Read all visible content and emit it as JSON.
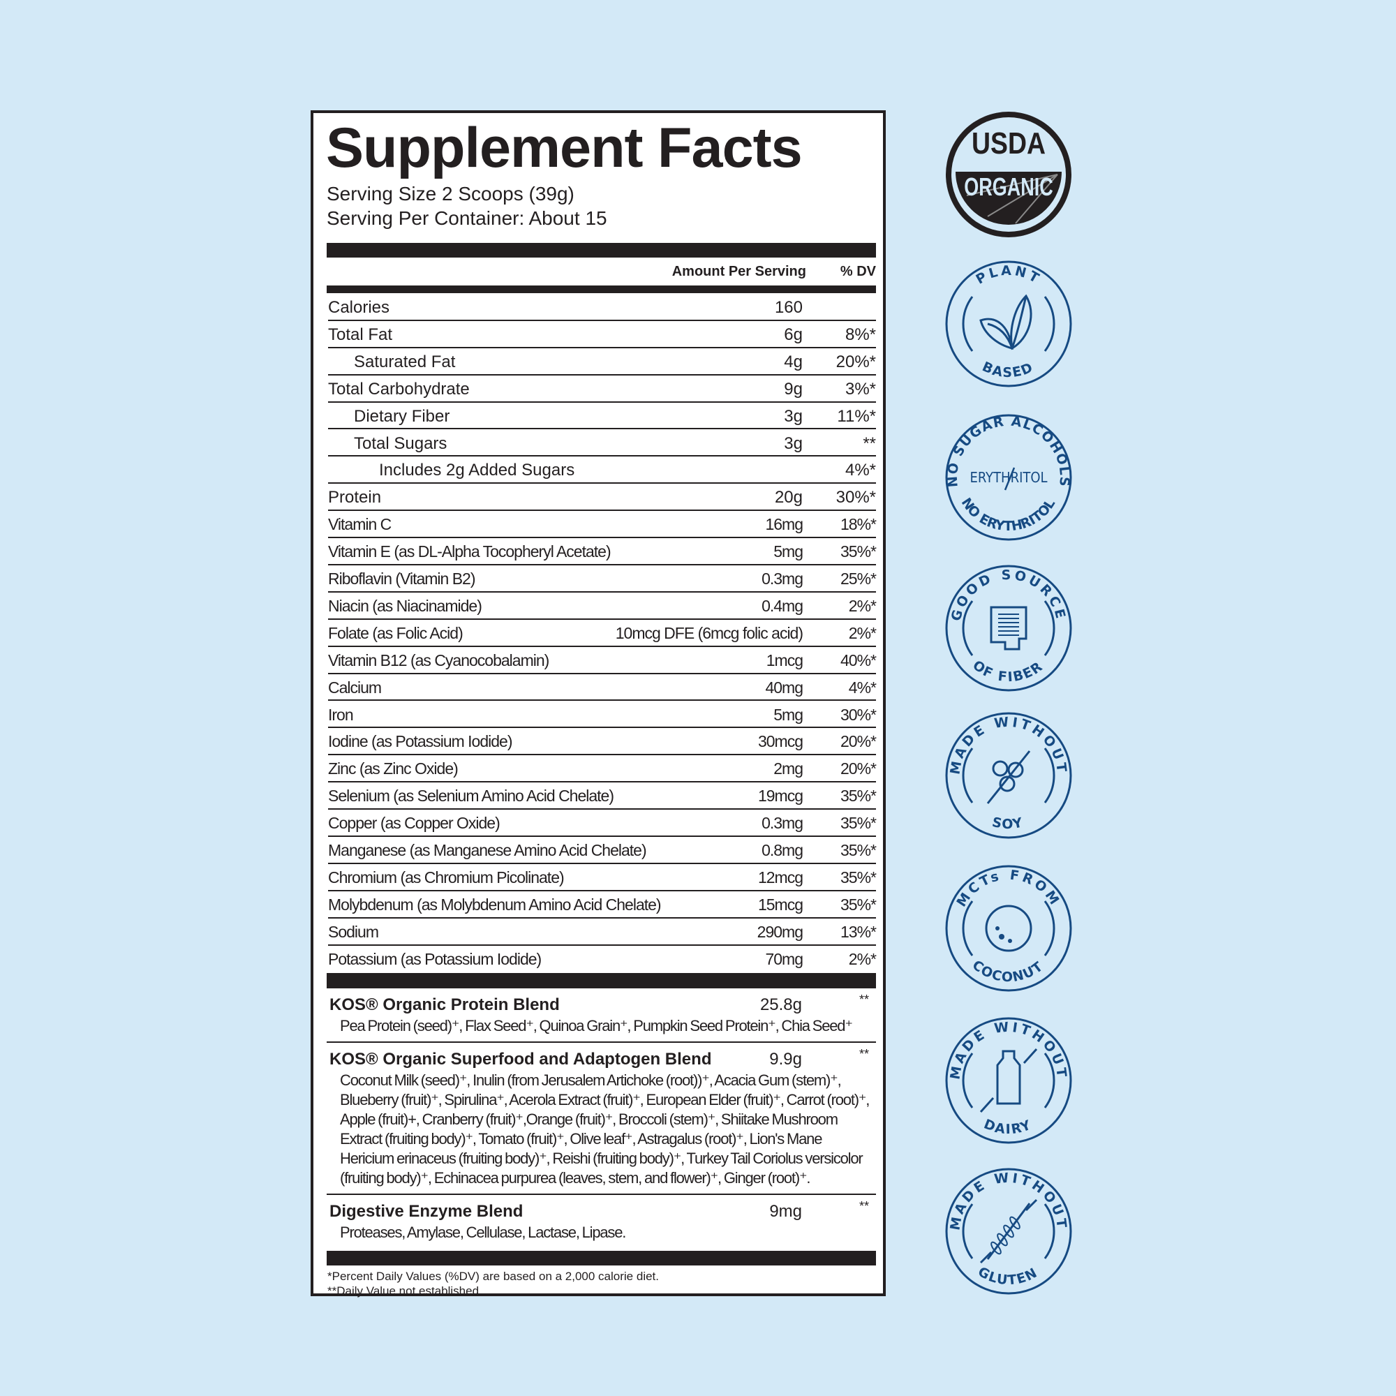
{
  "title": "Supplement Facts",
  "serving_size": "Serving Size 2 Scoops (39g)",
  "servings_per_container": "Serving Per Container: About 15",
  "header": {
    "amount": "Amount Per Serving",
    "dv": "% DV"
  },
  "rows": [
    {
      "label": "Calories",
      "amount": "160",
      "dv": "",
      "level": 0
    },
    {
      "label": "Total Fat",
      "amount": "6g",
      "dv": "8%*",
      "level": 0
    },
    {
      "label": "Saturated Fat",
      "amount": "4g",
      "dv": "20%*",
      "level": 1
    },
    {
      "label": "Total Carbohydrate",
      "amount": "9g",
      "dv": "3%*",
      "level": 0
    },
    {
      "label": "Dietary Fiber",
      "amount": "3g",
      "dv": "11%*",
      "level": 1
    },
    {
      "label": "Total Sugars",
      "amount": "3g",
      "dv": "**",
      "level": 1
    },
    {
      "label": "Includes 2g Added Sugars",
      "amount": "",
      "dv": "4%*",
      "level": 2
    },
    {
      "label": "Protein",
      "amount": "20g",
      "dv": "30%*",
      "level": 0
    },
    {
      "label": "Vitamin C",
      "amount": "16mg",
      "dv": "18%*",
      "level": 0,
      "condensed": true
    },
    {
      "label": "Vitamin E (as DL-Alpha Tocopheryl Acetate)",
      "amount": "5mg",
      "dv": "35%*",
      "level": 0,
      "condensed": true
    },
    {
      "label": "Riboflavin (Vitamin B2)",
      "amount": "0.3mg",
      "dv": "25%*",
      "level": 0,
      "condensed": true
    },
    {
      "label": "Niacin (as Niacinamide)",
      "amount": "0.4mg",
      "dv": "2%*",
      "level": 0,
      "condensed": true
    },
    {
      "label": "Folate (as Folic Acid)",
      "amount": "10mcg DFE (6mcg folic acid)",
      "dv": "2%*",
      "level": 0,
      "condensed": true
    },
    {
      "label": "Vitamin B12 (as Cyanocobalamin)",
      "amount": "1mcg",
      "dv": "40%*",
      "level": 0,
      "condensed": true
    },
    {
      "label": "Calcium",
      "amount": "40mg",
      "dv": "4%*",
      "level": 0,
      "condensed": true
    },
    {
      "label": "Iron",
      "amount": "5mg",
      "dv": "30%*",
      "level": 0,
      "condensed": true
    },
    {
      "label": "Iodine (as Potassium Iodide)",
      "amount": "30mcg",
      "dv": "20%*",
      "level": 0,
      "condensed": true
    },
    {
      "label": "Zinc (as Zinc Oxide)",
      "amount": "2mg",
      "dv": "20%*",
      "level": 0,
      "condensed": true
    },
    {
      "label": "Selenium (as Selenium Amino Acid Chelate)",
      "amount": "19mcg",
      "dv": "35%*",
      "level": 0,
      "condensed": true
    },
    {
      "label": "Copper (as Copper Oxide)",
      "amount": "0.3mg",
      "dv": "35%*",
      "level": 0,
      "condensed": true
    },
    {
      "label": "Manganese (as Manganese Amino Acid Chelate)",
      "amount": "0.8mg",
      "dv": "35%*",
      "level": 0,
      "condensed": true
    },
    {
      "label": "Chromium (as Chromium Picolinate)",
      "amount": "12mcg",
      "dv": "35%*",
      "level": 0,
      "condensed": true
    },
    {
      "label": "Molybdenum (as Molybdenum Amino Acid Chelate)",
      "amount": "15mcg",
      "dv": "35%*",
      "level": 0,
      "condensed": true
    },
    {
      "label": "Sodium",
      "amount": "290mg",
      "dv": "13%*",
      "level": 0,
      "condensed": true
    },
    {
      "label": "Potassium (as Potassium Iodide)",
      "amount": "70mg",
      "dv": "2%*",
      "level": 0,
      "condensed": true
    }
  ],
  "blends": [
    {
      "name": "KOS® Organic Protein Blend",
      "amount": "25.8g",
      "dv": "**",
      "ingredients": "Pea Protein (seed)⁺, Flax Seed⁺, Quinoa Grain⁺, Pumpkin Seed Protein⁺, Chia Seed⁺"
    },
    {
      "name": "KOS® Organic Superfood and Adaptogen Blend",
      "amount": "9.9g",
      "dv": "**",
      "ingredients": "Coconut Milk (seed)⁺, Inulin (from Jerusalem Artichoke (root))⁺, Acacia Gum (stem)⁺, Blueberry (fruit)⁺, Spirulina⁺, Acerola Extract (fruit)⁺, European Elder (fruit)⁺, Carrot (root)⁺, Apple (fruit)+, Cranberry (fruit)⁺,Orange (fruit)⁺, Broccoli (stem)⁺, Shiitake Mushroom Extract (fruiting body)⁺, Tomato (fruit)⁺, Olive leaf⁺, Astragalus (root)⁺, Lion's Mane Hericium erinaceus (fruiting body)⁺, Reishi (fruiting body)⁺, Turkey Tail Coriolus versicolor (fruiting body)⁺, Echinacea purpurea (leaves, stem, and flower)⁺, Ginger (root)⁺."
    },
    {
      "name": "Digestive Enzyme Blend",
      "amount": "9mg",
      "dv": "**",
      "ingredients": "Proteases, Amylase, Cellulase, Lactase, Lipase."
    }
  ],
  "footnotes": [
    "*Percent Daily Values (%DV) are based on a 2,000 calorie diet.",
    "**Daily Value not established."
  ],
  "badges": [
    {
      "id": "usda",
      "top": "USDA",
      "bottom": "ORGANIC",
      "icon": "usda-organic-seal"
    },
    {
      "id": "plant",
      "top": "PLANT",
      "bottom": "BASED",
      "icon": "leaf-icon"
    },
    {
      "id": "sugar",
      "top": "NO SUGAR ALCOHOLS",
      "bottom": "NO ERYTHRITOL",
      "center": "ERYTHRITOL",
      "icon": "crossed-out-text"
    },
    {
      "id": "fiber",
      "top": "GOOD SOURCE",
      "bottom": "OF FIBER",
      "icon": "intestine-icon"
    },
    {
      "id": "soy",
      "top": "MADE WITHOUT",
      "bottom": "SOY",
      "icon": "soybean-icon"
    },
    {
      "id": "coconut",
      "top": "MCTs FROM",
      "bottom": "COCONUT",
      "icon": "coconut-icon"
    },
    {
      "id": "dairy",
      "top": "MADE WITHOUT",
      "bottom": "DAIRY",
      "icon": "milk-bottle-icon"
    },
    {
      "id": "gluten",
      "top": "MADE WITHOUT",
      "bottom": "GLUTEN",
      "icon": "wheat-icon"
    }
  ],
  "colors": {
    "background": "#d3e9f7",
    "ink": "#231f20",
    "badge_blue": "#164a82"
  }
}
